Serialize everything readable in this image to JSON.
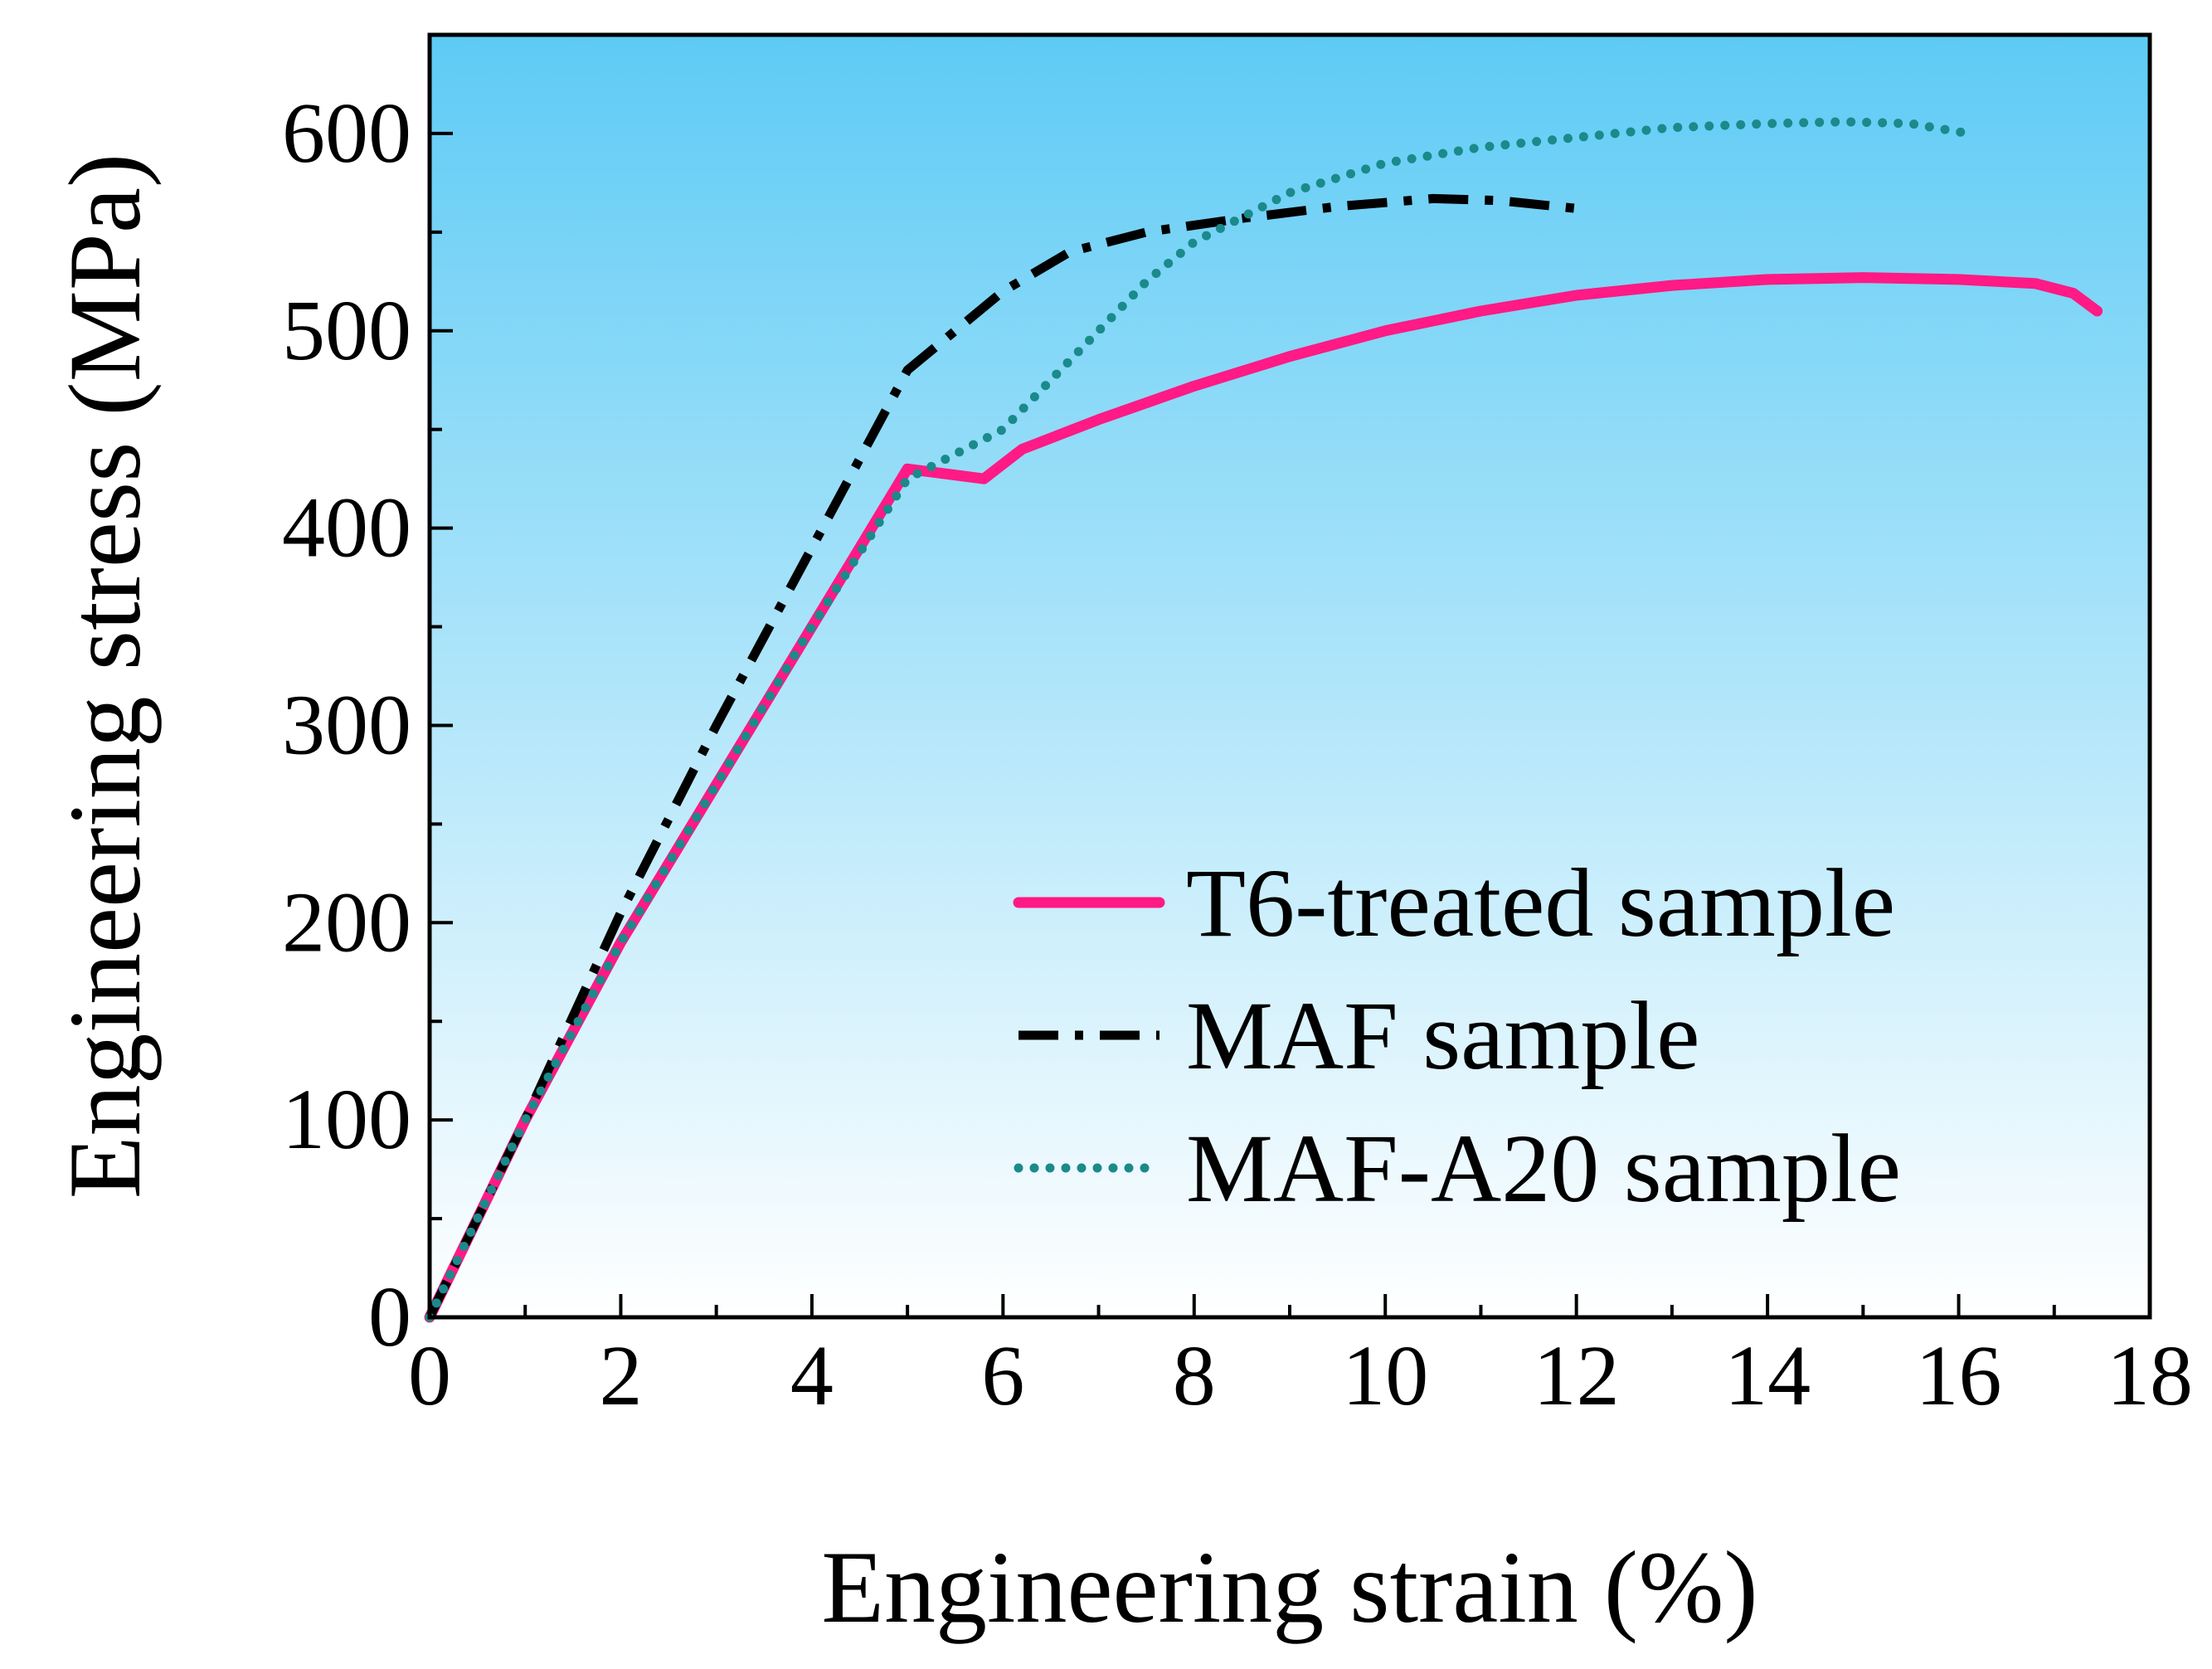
{
  "chart_data": {
    "type": "line",
    "title": "",
    "xlabel": "Engineering strain (%)",
    "ylabel": "Engineering stress (MPa)",
    "xlim": [
      0,
      18
    ],
    "ylim": [
      0,
      650
    ],
    "xticks": [
      0,
      2,
      4,
      6,
      8,
      10,
      12,
      14,
      16,
      18
    ],
    "xtick_labels": [
      "0",
      "2",
      "4",
      "6",
      "8",
      "10",
      "12",
      "14",
      "16",
      "18"
    ],
    "yticks": [
      0,
      100,
      200,
      300,
      400,
      500,
      600
    ],
    "ytick_labels": [
      "0",
      "100",
      "200",
      "300",
      "400",
      "500",
      "600"
    ],
    "grid": false,
    "legend_position": "bottom-right",
    "background_gradient": [
      "#5ecbf5",
      "#ffffff"
    ],
    "series": [
      {
        "name": "T6-treated sample",
        "color": "#ff1a85",
        "style": "solid",
        "x": [
          0,
          1,
          2,
          3,
          4,
          5,
          5.8,
          6.2,
          7,
          8,
          9,
          10,
          11,
          12,
          13,
          14,
          15,
          16,
          16.8,
          17.2,
          17.45
        ],
        "y": [
          0,
          100,
          190,
          270,
          350,
          430,
          425,
          440,
          455,
          472,
          487,
          500,
          510,
          518,
          523,
          526,
          527,
          526,
          524,
          519,
          510
        ]
      },
      {
        "name": "MAF sample",
        "color": "#000000",
        "style": "dashdot",
        "x": [
          0,
          1,
          2,
          3,
          4,
          5,
          6,
          6.7,
          7.5,
          8.5,
          9.5,
          10.5,
          11.2,
          12
        ],
        "y": [
          0,
          100,
          205,
          300,
          390,
          480,
          520,
          540,
          550,
          557,
          563,
          567,
          566,
          562
        ]
      },
      {
        "name": "MAF-A20 sample",
        "color": "#1a8a8a",
        "style": "dotted",
        "x": [
          0,
          1,
          2,
          3,
          4,
          5,
          6,
          6.5,
          7,
          7.5,
          8,
          9,
          10,
          11,
          12,
          13,
          14,
          14.8,
          15.5,
          16.1
        ],
        "y": [
          0,
          100,
          190,
          270,
          350,
          425,
          450,
          475,
          500,
          525,
          545,
          570,
          585,
          593,
          598,
          603,
          605,
          606,
          605,
          600
        ]
      }
    ]
  }
}
